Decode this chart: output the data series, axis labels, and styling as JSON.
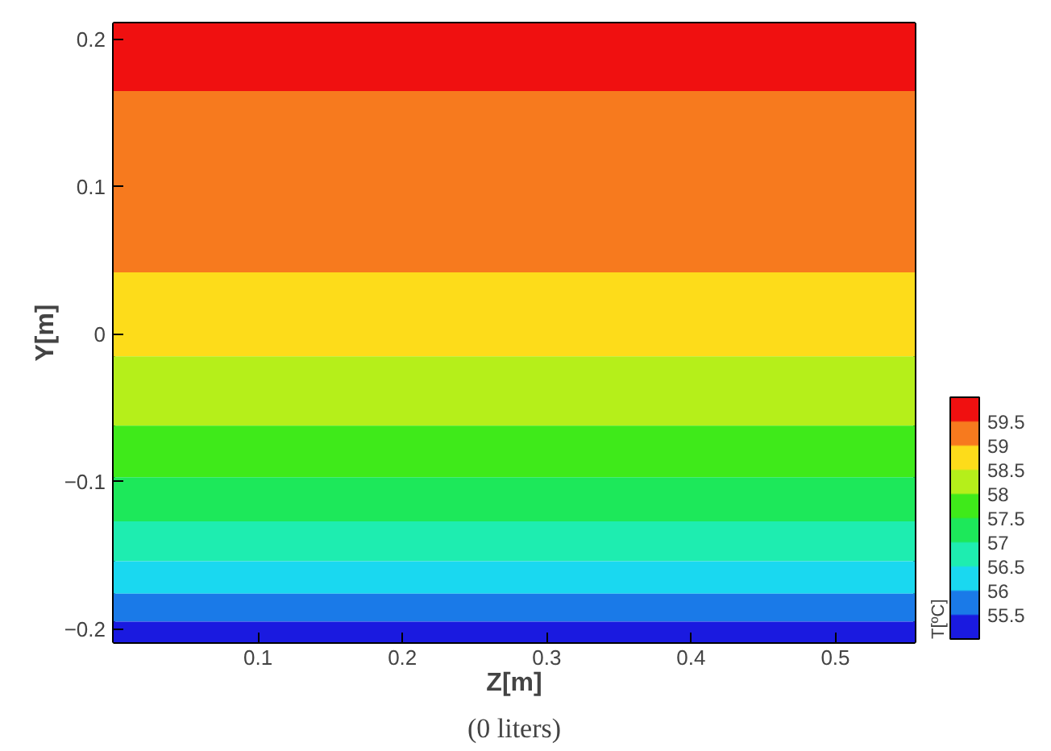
{
  "chart_data": {
    "type": "line",
    "xlabel": "Z[m]",
    "ylabel": "Y[m]",
    "clabel": "T[ºC]",
    "bands": [
      {
        "axis": "y",
        "from": 0.165,
        "to": 0.211,
        "color": "#f01010"
      },
      {
        "axis": "y",
        "from": 0.042,
        "to": 0.165,
        "color": "#f77a1e"
      },
      {
        "axis": "y",
        "from": -0.015,
        "to": 0.042,
        "color": "#fddc1a"
      },
      {
        "axis": "y",
        "from": -0.062,
        "to": -0.015,
        "color": "#b5ef1a"
      },
      {
        "axis": "y",
        "from": -0.097,
        "to": -0.062,
        "color": "#3fea1a"
      },
      {
        "axis": "y",
        "from": -0.127,
        "to": -0.097,
        "color": "#1de85a"
      },
      {
        "axis": "y",
        "from": -0.154,
        "to": -0.127,
        "color": "#1eedb0"
      },
      {
        "axis": "y",
        "from": -0.176,
        "to": -0.154,
        "color": "#1ad8f0"
      },
      {
        "axis": "y",
        "from": -0.195,
        "to": -0.176,
        "color": "#1a7ae8"
      },
      {
        "axis": "y",
        "from": -0.209,
        "to": -0.195,
        "color": "#1a1ae0"
      }
    ],
    "colors": [
      "#1a1ae0",
      "#1a7ae8",
      "#1ad8f0",
      "#1eedb0",
      "#1de85a",
      "#3fea1a",
      "#b5ef1a",
      "#fddc1a",
      "#f77a1e",
      "#f01010"
    ],
    "clim": [
      55,
      60
    ],
    "cticks": [
      55.5,
      56,
      56.5,
      57,
      57.5,
      58,
      58.5,
      59,
      59.5
    ],
    "xlim": [
      0,
      0.555
    ],
    "ylim": [
      -0.209,
      0.211
    ],
    "xticks": [
      0.1,
      0.2,
      0.3,
      0.4,
      0.5
    ],
    "yticks": [
      -0.2,
      -0.1,
      0,
      0.1,
      0.2
    ],
    "grid": false,
    "annotations": [
      "(0 liters)"
    ]
  }
}
